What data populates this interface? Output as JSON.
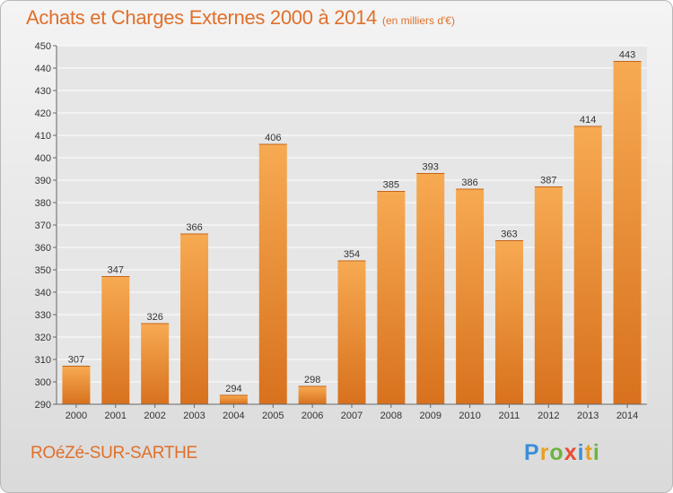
{
  "title": "Achats et Charges Externes 2000 à 2014",
  "subtitle": "(en milliers d'€)",
  "location": "ROéZé-SUR-SARTHE",
  "logo_text": "Proxiti",
  "colors": {
    "bar_light": "#f5a64d",
    "bar_dark": "#d9721f",
    "accent": "#e0702a"
  },
  "chart_data": {
    "type": "bar",
    "categories": [
      "2000",
      "2001",
      "2002",
      "2003",
      "2004",
      "2005",
      "2006",
      "2007",
      "2008",
      "2009",
      "2010",
      "2011",
      "2012",
      "2013",
      "2014"
    ],
    "values": [
      307,
      347,
      326,
      366,
      294,
      406,
      298,
      354,
      385,
      393,
      386,
      363,
      387,
      414,
      443
    ],
    "ylim": [
      290,
      450
    ],
    "yticks": [
      290,
      300,
      310,
      320,
      330,
      340,
      350,
      360,
      370,
      380,
      390,
      400,
      410,
      420,
      430,
      440,
      450
    ],
    "grid": true,
    "xlabel": "",
    "ylabel": ""
  }
}
